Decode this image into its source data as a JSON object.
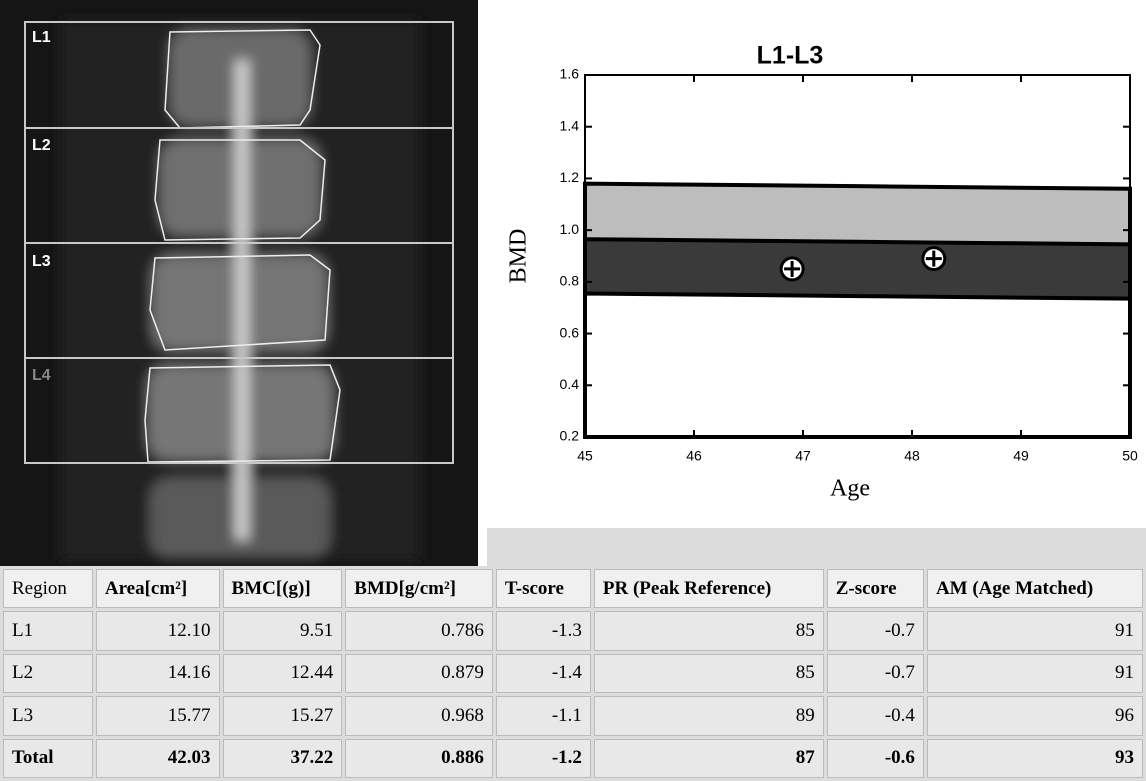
{
  "scan": {
    "labels": [
      "L1",
      "L2",
      "L3",
      "L4"
    ]
  },
  "chart_data": {
    "type": "area",
    "title": "L1-L3",
    "xlabel": "Age",
    "ylabel": "BMD",
    "x": [
      45,
      46.25,
      47.5,
      48.75,
      50
    ],
    "series": [
      {
        "color": "#bdbdbd",
        "values": [
          1.18,
          1.175,
          1.17,
          1.165,
          1.16
        ]
      },
      {
        "color": "#3a3a3a",
        "values": [
          0.965,
          0.96,
          0.955,
          0.95,
          0.945
        ]
      },
      {
        "color": "#ffffff",
        "values": [
          0.755,
          0.75,
          0.745,
          0.74,
          0.735
        ]
      }
    ],
    "points": {
      "x": [
        46.9,
        48.2
      ],
      "values": [
        0.85,
        0.89
      ]
    },
    "xlim": [
      45,
      50
    ],
    "xticks": [
      45,
      46,
      47,
      48,
      49,
      50
    ],
    "ylim": [
      0.2,
      1.6
    ],
    "yticks": [
      0.2,
      0.4,
      0.6,
      0.8,
      {
        "value": 1,
        "label": "1.0"
      },
      1.2,
      1.4,
      1.6
    ]
  },
  "table": {
    "header": [
      "Region",
      "Area[cm²]",
      "BMC[(g)]",
      "BMD[g/cm²]",
      "T-score",
      "PR (Peak Reference)",
      "Z-score",
      "AM (Age Matched)"
    ],
    "rows": [
      [
        "L1",
        "12.10",
        "9.51",
        "0.786",
        "-1.3",
        "85",
        "-0.7",
        "91"
      ],
      [
        "L2",
        "14.16",
        "12.44",
        "0.879",
        "-1.4",
        "85",
        "-0.7",
        "91"
      ],
      [
        "L3",
        "15.77",
        "15.27",
        "0.968",
        "-1.1",
        "89",
        "-0.4",
        "96"
      ],
      [
        "Total",
        "42.03",
        "37.22",
        "0.886",
        "-1.2",
        "87",
        "-0.6",
        "93"
      ]
    ]
  }
}
